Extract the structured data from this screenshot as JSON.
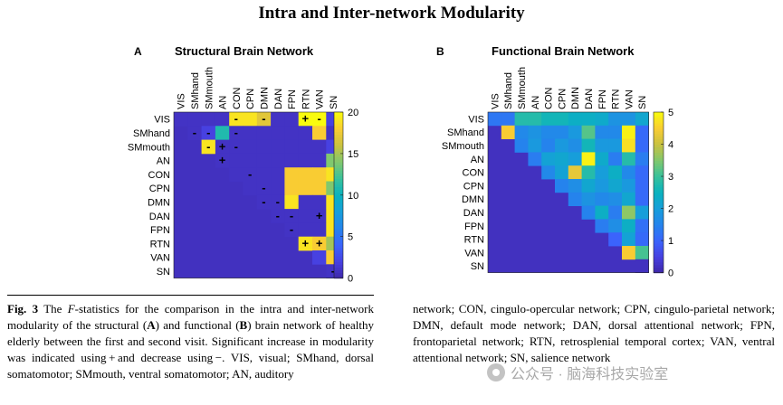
{
  "figure_title": "Intra and Inter-network Modularity",
  "chart_data": [
    {
      "type": "heatmap",
      "panel": "A",
      "title": "Structural Brain Network",
      "labels": [
        "VIS",
        "SMhand",
        "SMmouth",
        "AN",
        "CON",
        "CPN",
        "DMN",
        "DAN",
        "FPN",
        "RTN",
        "VAN",
        "SN"
      ],
      "colorbar": {
        "min": 0,
        "max": 20,
        "ticks": [
          0,
          5,
          10,
          15,
          20
        ]
      },
      "matrix": [
        [
          1,
          1,
          1,
          1,
          19,
          19,
          17,
          1,
          1,
          20,
          20,
          2
        ],
        [
          null,
          1,
          2,
          11,
          1,
          1,
          1,
          1,
          1,
          1,
          18,
          1
        ],
        [
          null,
          null,
          19,
          1,
          1,
          1,
          1,
          1,
          1,
          1,
          1,
          2
        ],
        [
          null,
          null,
          null,
          1,
          1,
          1,
          1,
          1,
          1,
          1,
          1,
          14
        ],
        [
          null,
          null,
          null,
          null,
          1,
          1,
          1,
          1,
          18,
          18,
          18,
          19
        ],
        [
          null,
          null,
          null,
          null,
          null,
          1,
          1,
          1,
          18,
          18,
          18,
          14
        ],
        [
          null,
          null,
          null,
          null,
          null,
          null,
          1,
          1,
          19,
          1,
          1,
          19
        ],
        [
          null,
          null,
          null,
          null,
          null,
          null,
          null,
          1,
          1,
          1,
          1,
          19
        ],
        [
          null,
          null,
          null,
          null,
          null,
          null,
          null,
          null,
          1,
          1,
          1,
          19
        ],
        [
          null,
          null,
          null,
          null,
          null,
          null,
          null,
          null,
          null,
          19,
          18,
          15
        ],
        [
          null,
          null,
          null,
          null,
          null,
          null,
          null,
          null,
          null,
          null,
          2,
          18
        ],
        [
          null,
          null,
          null,
          null,
          null,
          null,
          null,
          null,
          null,
          null,
          null,
          1
        ]
      ],
      "annotations": [
        {
          "row": 0,
          "col": 4,
          "mark": "-"
        },
        {
          "row": 0,
          "col": 6,
          "mark": "-"
        },
        {
          "row": 0,
          "col": 9,
          "mark": "+"
        },
        {
          "row": 0,
          "col": 10,
          "mark": "-"
        },
        {
          "row": 1,
          "col": 1,
          "mark": "-"
        },
        {
          "row": 1,
          "col": 2,
          "mark": "-"
        },
        {
          "row": 1,
          "col": 4,
          "mark": "-"
        },
        {
          "row": 2,
          "col": 2,
          "mark": "-"
        },
        {
          "row": 2,
          "col": 3,
          "mark": "+"
        },
        {
          "row": 2,
          "col": 4,
          "mark": "-"
        },
        {
          "row": 3,
          "col": 3,
          "mark": "+"
        },
        {
          "row": 4,
          "col": 5,
          "mark": "-"
        },
        {
          "row": 5,
          "col": 6,
          "mark": "-"
        },
        {
          "row": 6,
          "col": 6,
          "mark": "-"
        },
        {
          "row": 6,
          "col": 7,
          "mark": "-"
        },
        {
          "row": 7,
          "col": 7,
          "mark": "-"
        },
        {
          "row": 7,
          "col": 8,
          "mark": "-"
        },
        {
          "row": 7,
          "col": 10,
          "mark": "+"
        },
        {
          "row": 8,
          "col": 8,
          "mark": "-"
        },
        {
          "row": 9,
          "col": 9,
          "mark": "+"
        },
        {
          "row": 9,
          "col": 10,
          "mark": "+"
        },
        {
          "row": 11,
          "col": 11,
          "mark": "-"
        }
      ]
    },
    {
      "type": "heatmap",
      "panel": "B",
      "title": "Functional Brain Network",
      "labels": [
        "VIS",
        "SMhand",
        "SMmouth",
        "AN",
        "CON",
        "CPN",
        "DMN",
        "DAN",
        "FPN",
        "RTN",
        "VAN",
        "SN"
      ],
      "colorbar": {
        "min": 0,
        "max": 5,
        "ticks": [
          0,
          1,
          2,
          3,
          4,
          5
        ]
      },
      "matrix": [
        [
          1.3,
          1.3,
          2.8,
          2.8,
          2.6,
          2.6,
          2.4,
          2.4,
          2.3,
          1.8,
          1.8,
          2.2
        ],
        [
          null,
          4.5,
          1.6,
          1.8,
          1.6,
          1.6,
          1.9,
          3.2,
          1.6,
          1.6,
          4.9,
          1.1
        ],
        [
          null,
          null,
          1.5,
          1.9,
          1.5,
          1.9,
          1.7,
          2.6,
          1.9,
          1.9,
          4.7,
          1.1
        ],
        [
          null,
          null,
          null,
          1.4,
          2.1,
          2.2,
          2.0,
          4.9,
          2.3,
          1.4,
          2.8,
          1.4
        ],
        [
          null,
          null,
          null,
          null,
          1.6,
          2.1,
          4.3,
          2.8,
          2.0,
          2.4,
          1.6,
          1.1
        ],
        [
          null,
          null,
          null,
          null,
          null,
          1.5,
          1.7,
          2.2,
          1.9,
          2.2,
          1.9,
          1.1
        ],
        [
          null,
          null,
          null,
          null,
          null,
          null,
          1.5,
          1.8,
          1.6,
          1.7,
          2.2,
          1.1
        ],
        [
          null,
          null,
          null,
          null,
          null,
          null,
          null,
          1.5,
          2.4,
          1.4,
          3.6,
          2.0
        ],
        [
          null,
          null,
          null,
          null,
          null,
          null,
          null,
          null,
          1.4,
          1.7,
          2.4,
          1.2
        ],
        [
          null,
          null,
          null,
          null,
          null,
          null,
          null,
          null,
          null,
          1.0,
          2.1,
          1.1
        ],
        [
          null,
          null,
          null,
          null,
          null,
          null,
          null,
          null,
          null,
          null,
          4.5,
          3.1
        ],
        [
          null,
          null,
          null,
          null,
          null,
          null,
          null,
          null,
          null,
          null,
          null,
          0.2
        ]
      ],
      "annotations": []
    }
  ],
  "caption": {
    "fig_label": "Fig. 3",
    "left_parts": [
      " The ",
      "F",
      "-statistics for the comparison in the intra and inter-network modularity of the structural (",
      "A",
      ") and functional (",
      "B",
      ") brain network of healthy elderly between the first and second visit. Significant increase in modularity was indicated using + and decrease using −. VIS, visual; SMhand, dorsal somatomotor; SMmouth, ventral somatomotor; AN, auditory"
    ],
    "right": "network; CON, cingulo-opercular network; CPN, cingulo-parietal network; DMN, default mode network; DAN, dorsal attentional network; FPN, frontoparietal network; RTN, retrosplenial temporal cortex; VAN, ventral attentional network; SN, salience network"
  },
  "watermark": "公众号 · 脑海科技实验室"
}
